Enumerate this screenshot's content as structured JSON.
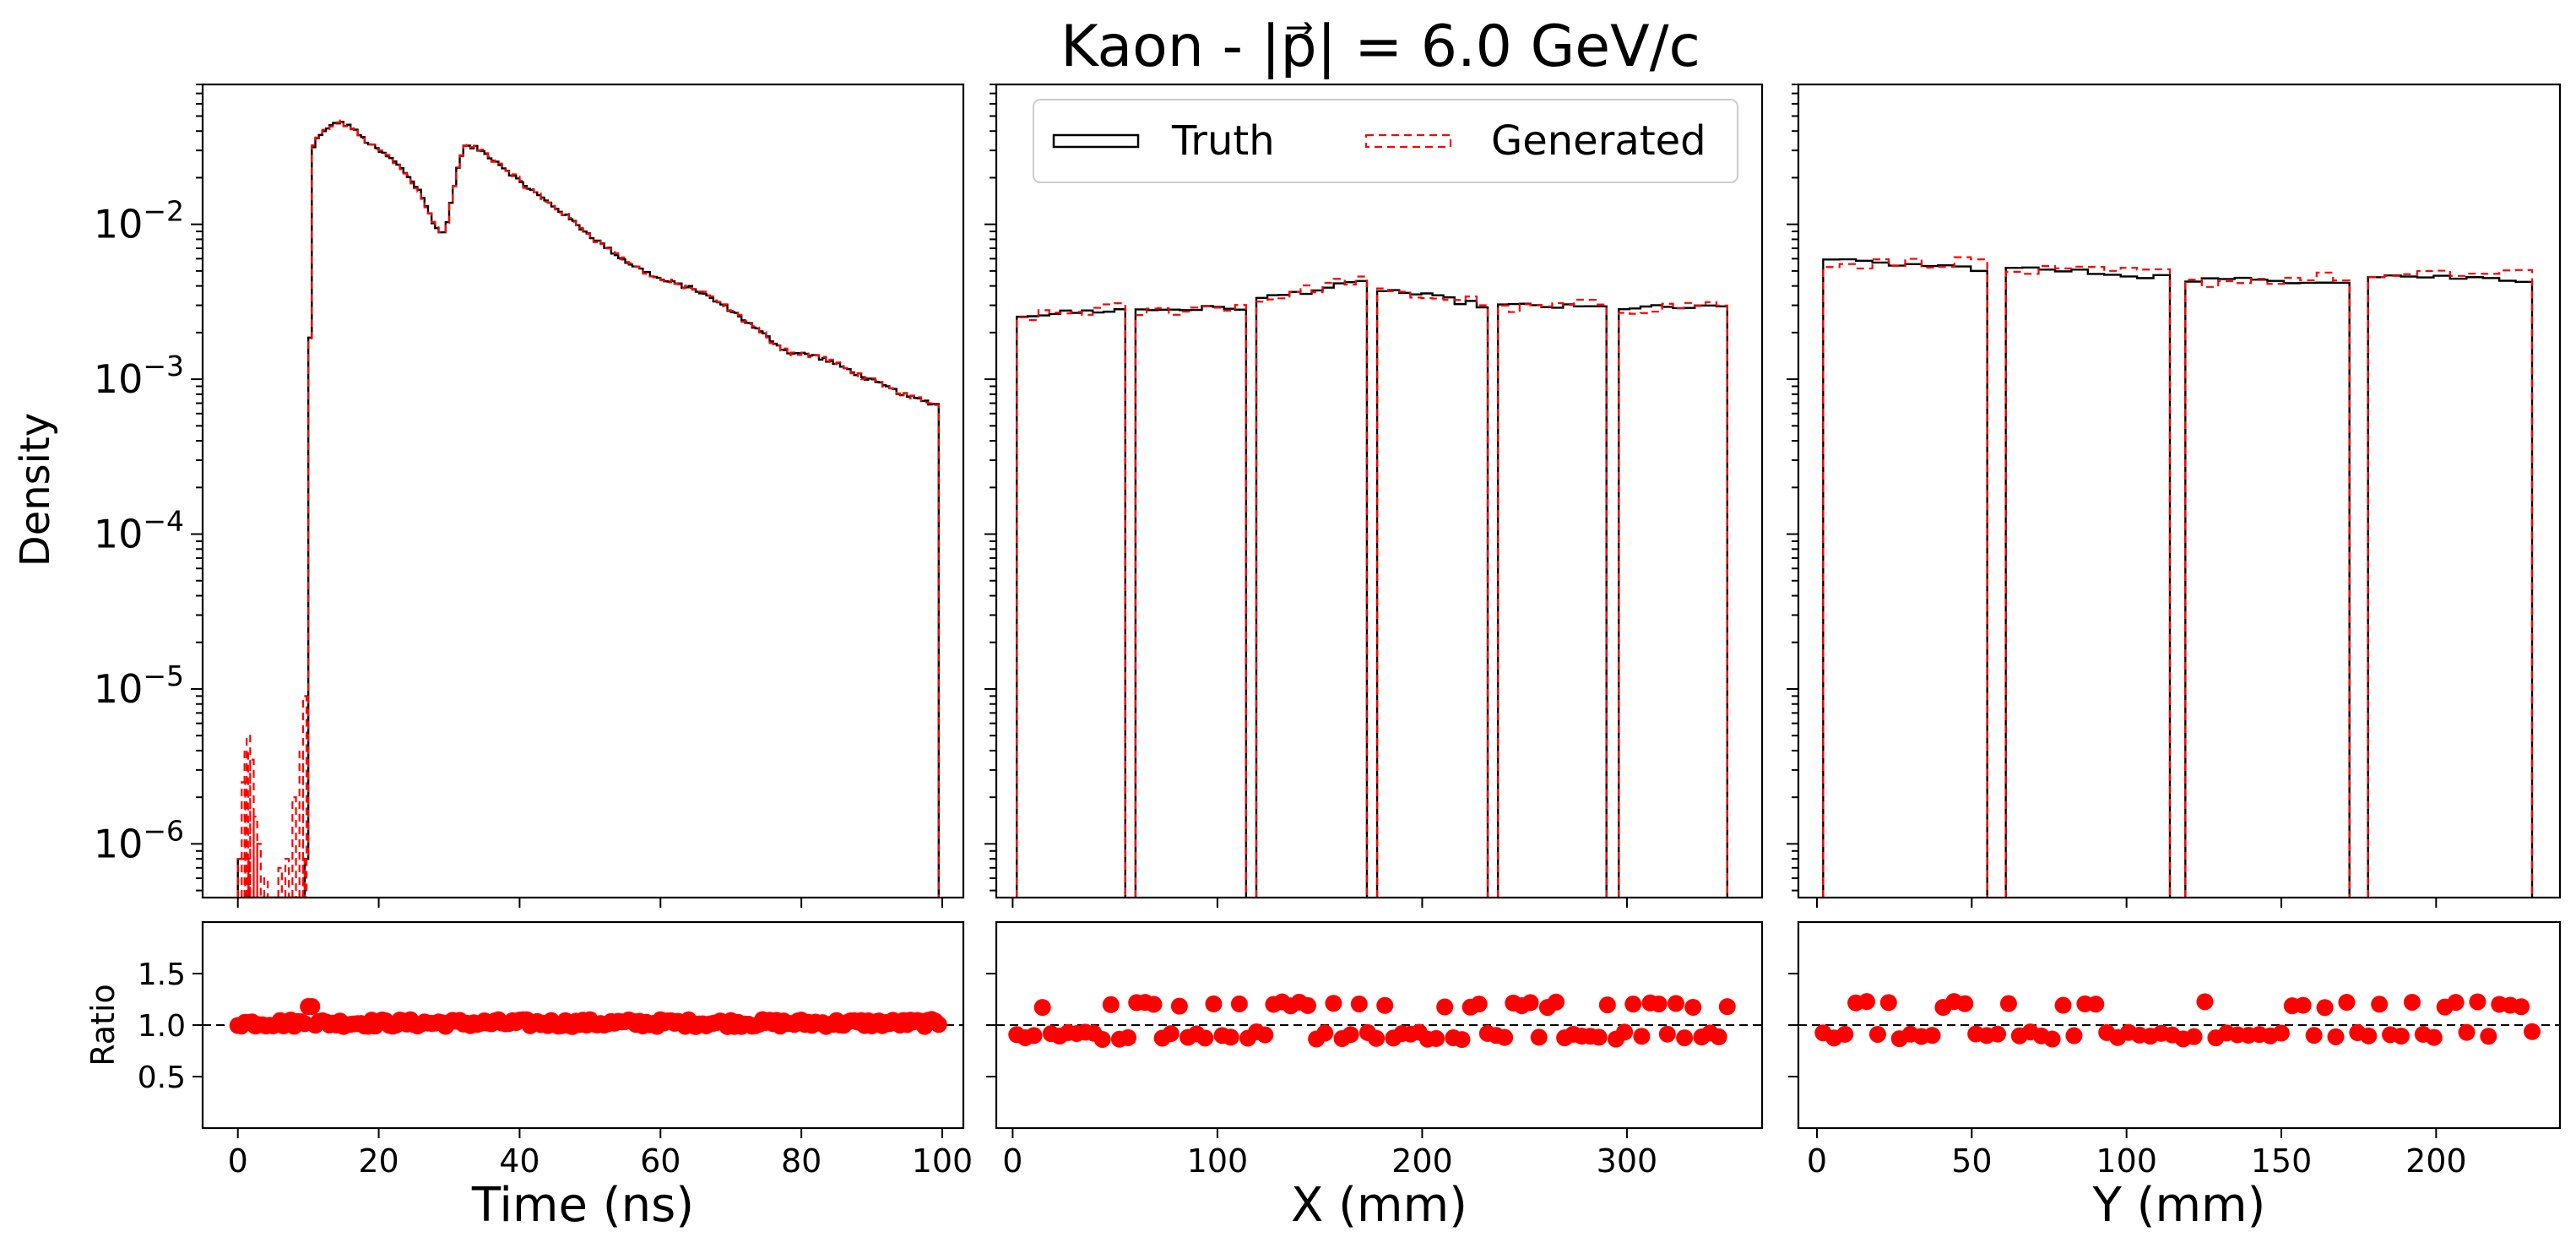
{
  "chart_data": {
    "type": "histogram",
    "title": "Kaon - |p⃗| = 6.0 GeV/c",
    "ylabel": "Density",
    "ratio_ylabel": "Ratio",
    "ratio_ticks": [
      "0.5",
      "1.0",
      "1.5"
    ],
    "ratio_ylim": [
      0.0,
      2.0
    ],
    "ratio_reference": 1.0,
    "legend": {
      "location": "upper-center",
      "entries": [
        {
          "name": "Truth",
          "color": "#000000",
          "style": "solid"
        },
        {
          "name": "Generated",
          "color": "#ff0000",
          "style": "dashed"
        }
      ]
    },
    "y_scale": "log",
    "ylim": [
      4.5e-07,
      0.08
    ],
    "y_tick_labels": [
      {
        "value": 1e-06,
        "exp": "−6"
      },
      {
        "value": 1e-05,
        "exp": "−5"
      },
      {
        "value": 0.0001,
        "exp": "−4"
      },
      {
        "value": 0.001,
        "exp": "−3"
      },
      {
        "value": 0.01,
        "exp": "−2"
      }
    ],
    "panels": [
      {
        "xlabel": "Time (ns)",
        "xlim": [
          -5,
          103
        ],
        "xticks": [
          0,
          20,
          40,
          60,
          80,
          100
        ],
        "truth_knots": [
          [
            0,
            8e-07
          ],
          [
            1.5,
            8e-07
          ],
          [
            1.6,
            0
          ],
          [
            9.6,
            0
          ],
          [
            9.8,
            8e-07
          ],
          [
            10.0,
            0.00025
          ],
          [
            10.6,
            0.03
          ],
          [
            11.5,
            0.038
          ],
          [
            12.5,
            0.04
          ],
          [
            14.0,
            0.046
          ],
          [
            16.0,
            0.043
          ],
          [
            18.0,
            0.035
          ],
          [
            20.0,
            0.03
          ],
          [
            22.0,
            0.026
          ],
          [
            24.0,
            0.021
          ],
          [
            26.0,
            0.016
          ],
          [
            28.0,
            0.0095
          ],
          [
            29.5,
            0.0088
          ],
          [
            30.5,
            0.016
          ],
          [
            32.0,
            0.032
          ],
          [
            34.0,
            0.031
          ],
          [
            37.0,
            0.025
          ],
          [
            40.0,
            0.019
          ],
          [
            43.0,
            0.015
          ],
          [
            46.0,
            0.012
          ],
          [
            50.0,
            0.0085
          ],
          [
            55.0,
            0.0058
          ],
          [
            60.0,
            0.0044
          ],
          [
            65.0,
            0.0038
          ],
          [
            70.0,
            0.0028
          ],
          [
            75.0,
            0.0019
          ],
          [
            78.0,
            0.0015
          ],
          [
            82.0,
            0.00142
          ],
          [
            85.0,
            0.00125
          ],
          [
            90.0,
            0.00098
          ],
          [
            95.0,
            0.00078
          ],
          [
            99.5,
            0.00068
          ]
        ],
        "generated_spikes": [
          [
            0.8,
            2.5e-06
          ],
          [
            1.2,
            4e-06
          ],
          [
            1.5,
            5e-06
          ],
          [
            2.0,
            3.5e-06
          ],
          [
            2.5,
            1.5e-06
          ],
          [
            3.0,
            1e-06
          ],
          [
            4.0,
            6e-07
          ],
          [
            6.0,
            7e-07
          ],
          [
            7.0,
            8e-07
          ],
          [
            8.0,
            2e-06
          ],
          [
            9.0,
            4e-06
          ],
          [
            9.5,
            9e-06
          ]
        ],
        "ratio_mean": 1.02,
        "ratio_spread": 0.05,
        "ratio_points": 200
      },
      {
        "xlabel": "X (mm)",
        "xlim": [
          -8,
          366
        ],
        "xticks": [
          0,
          100,
          200,
          300
        ],
        "segments": [
          {
            "x": [
              2,
              55
            ],
            "truth": [
              0.0026,
              0.0028
            ],
            "gen": [
              0.0025,
              0.0029
            ]
          },
          {
            "x": [
              60,
              114
            ],
            "truth": [
              0.0028,
              0.0029
            ],
            "gen": [
              0.0027,
              0.003
            ]
          },
          {
            "x": [
              119,
              173
            ],
            "truth": [
              0.0033,
              0.0042
            ],
            "gen": [
              0.0032,
              0.0045
            ]
          },
          {
            "x": [
              178,
              232
            ],
            "truth": [
              0.0038,
              0.003
            ],
            "gen": [
              0.0036,
              0.0032
            ]
          },
          {
            "x": [
              237,
              290
            ],
            "truth": [
              0.003,
              0.0029
            ],
            "gen": [
              0.0028,
              0.0031
            ]
          },
          {
            "x": [
              296,
              349
            ],
            "truth": [
              0.0029,
              0.0029
            ],
            "gen": [
              0.0028,
              0.0031
            ]
          }
        ],
        "ratio_hi": 1.2,
        "ratio_lo": 0.9,
        "ratio_points": 84
      },
      {
        "xlabel": "Y (mm)",
        "xlim": [
          -6,
          240
        ],
        "xticks": [
          0,
          50,
          100,
          150,
          200
        ],
        "segments": [
          {
            "x": [
              2,
              55
            ],
            "truth": [
              0.0058,
              0.0052
            ],
            "gen": [
              0.0055,
              0.0058
            ]
          },
          {
            "x": [
              61,
              114
            ],
            "truth": [
              0.0052,
              0.0046
            ],
            "gen": [
              0.005,
              0.0049
            ]
          },
          {
            "x": [
              119,
              172
            ],
            "truth": [
              0.0044,
              0.0043
            ],
            "gen": [
              0.0042,
              0.0046
            ]
          },
          {
            "x": [
              178,
              231
            ],
            "truth": [
              0.0047,
              0.0044
            ],
            "gen": [
              0.0045,
              0.005
            ]
          }
        ],
        "ratio_hi": 1.2,
        "ratio_lo": 0.9,
        "ratio_points": 66
      }
    ]
  }
}
